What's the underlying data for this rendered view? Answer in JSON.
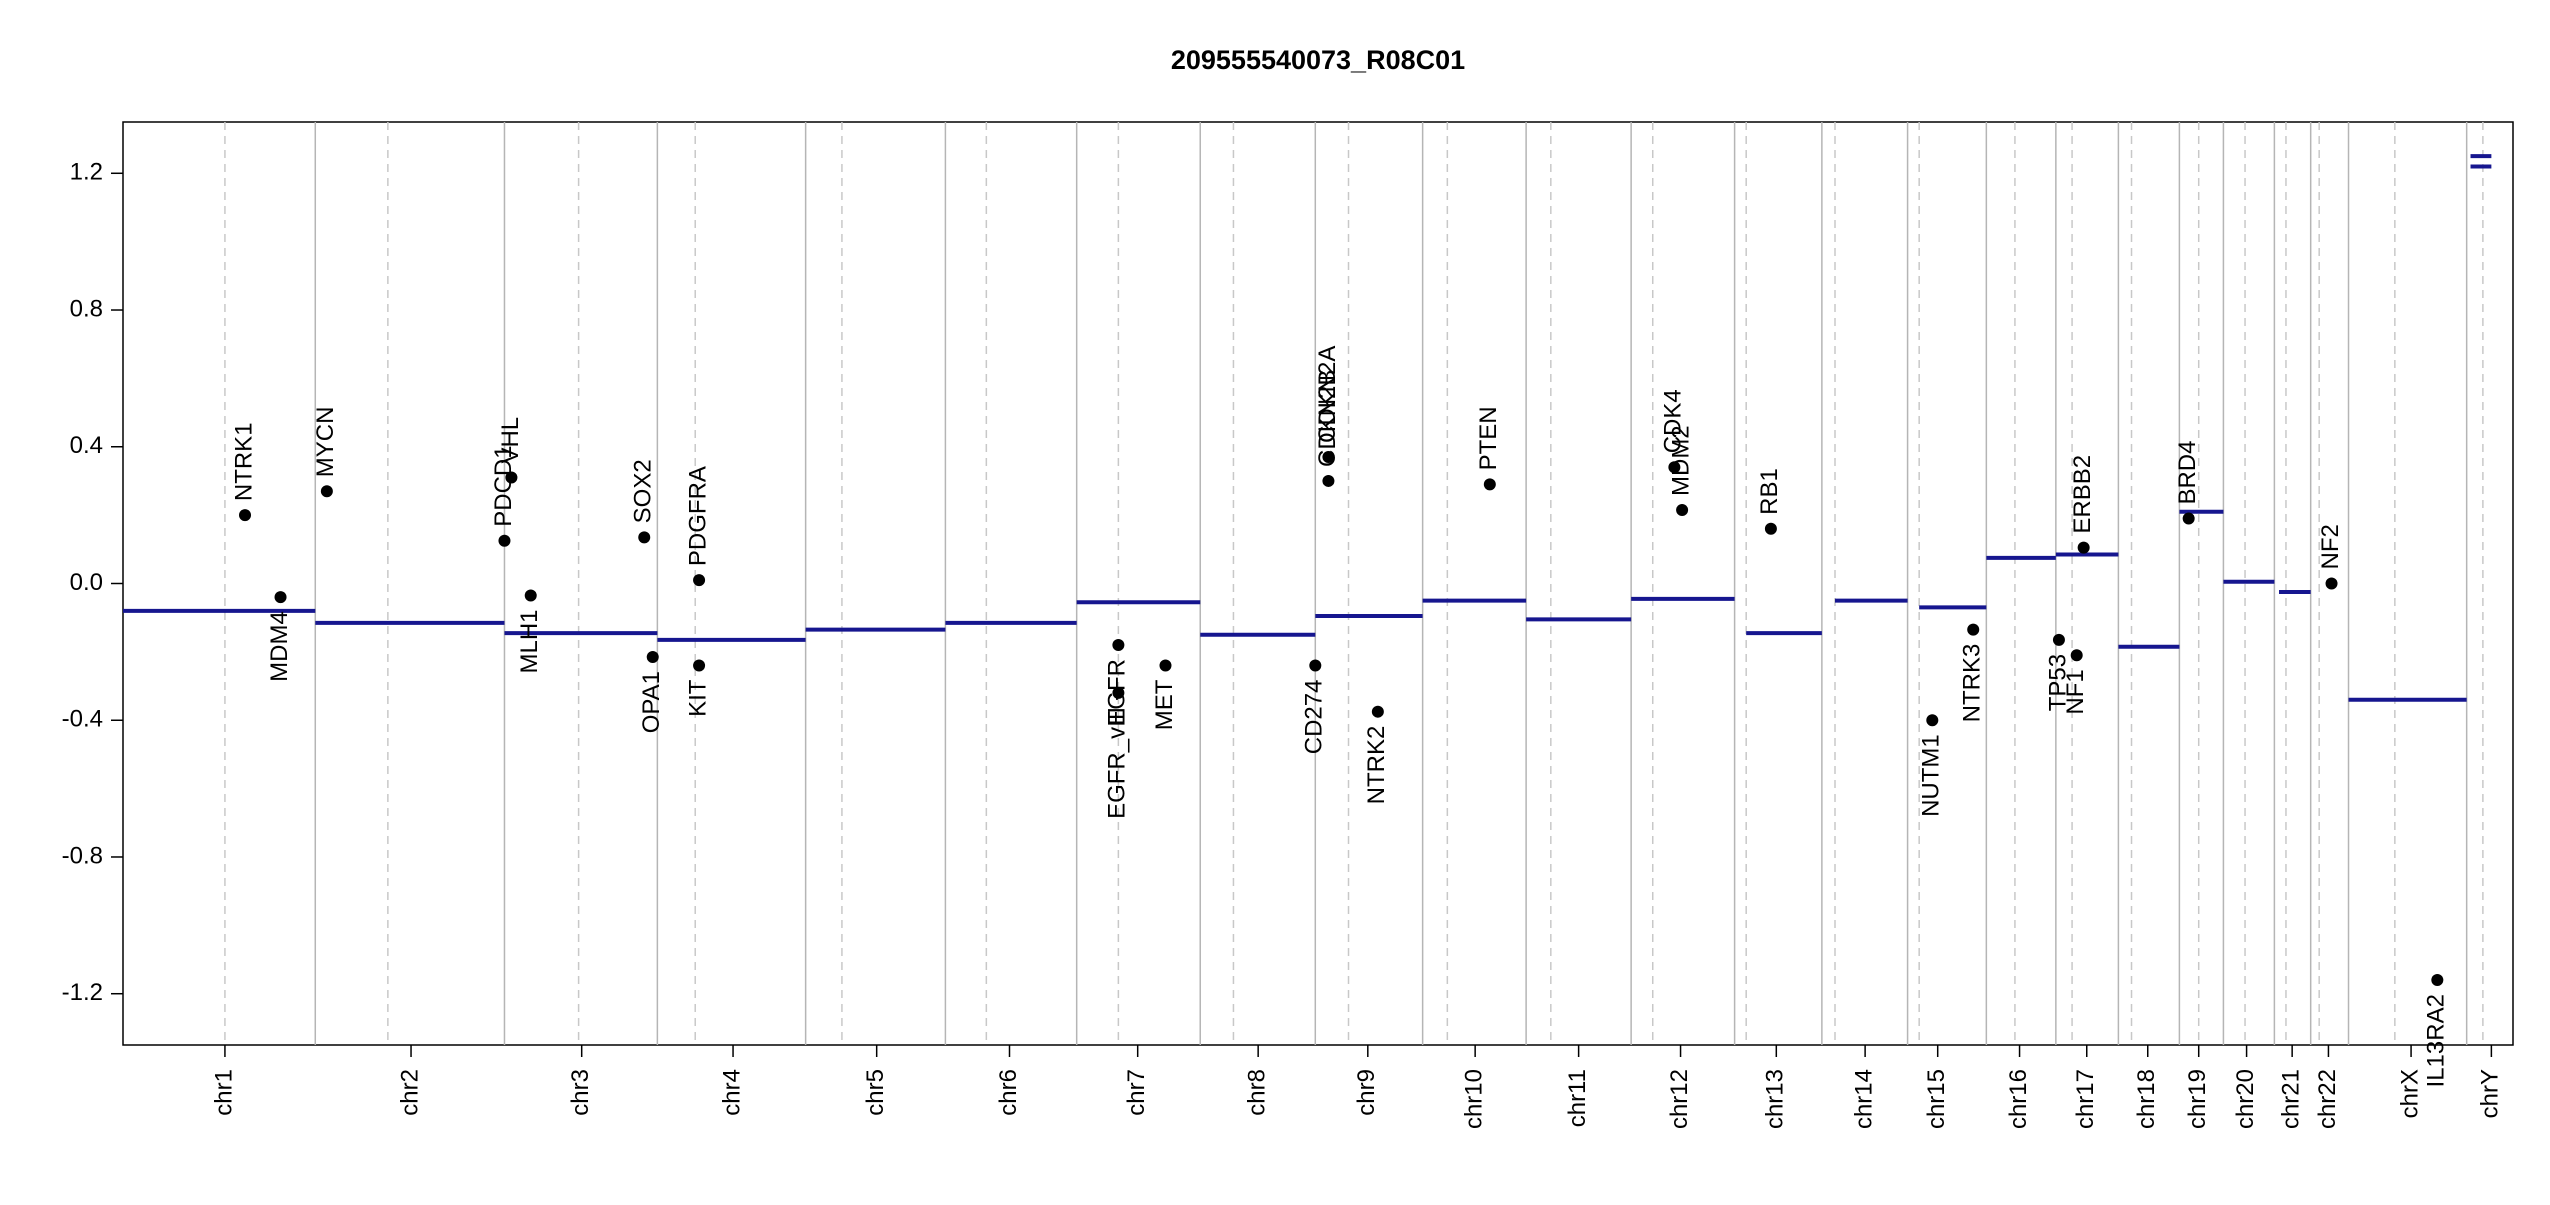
{
  "chart_data": {
    "type": "copy-number",
    "title": "209555540073_R08C01",
    "xlim": [
      0,
      3095
    ],
    "ylim": [
      -1.35,
      1.35
    ],
    "yticks": [
      -1.2,
      -0.8,
      -0.4,
      {
        "value": 0,
        "label": "0.0"
      },
      0.4,
      0.8,
      1.2
    ],
    "xticks": [
      {
        "value": 132,
        "label": "chr1"
      },
      {
        "value": 373,
        "label": "chr2"
      },
      {
        "value": 594,
        "label": "chr3"
      },
      {
        "value": 790,
        "label": "chr4"
      },
      {
        "value": 976,
        "label": "chr5"
      },
      {
        "value": 1148,
        "label": "chr6"
      },
      {
        "value": 1314,
        "label": "chr7"
      },
      {
        "value": 1470,
        "label": "chr8"
      },
      {
        "value": 1612,
        "label": "chr9"
      },
      {
        "value": 1751,
        "label": "chr10"
      },
      {
        "value": 1885,
        "label": "chr11"
      },
      {
        "value": 2017,
        "label": "chr12"
      },
      {
        "value": 2141,
        "label": "chr13"
      },
      {
        "value": 2256,
        "label": "chr14"
      },
      {
        "value": 2350,
        "label": "chr15"
      },
      {
        "value": 2456,
        "label": "chr16"
      },
      {
        "value": 2543,
        "label": "chr17"
      },
      {
        "value": 2622,
        "label": "chr18"
      },
      {
        "value": 2688,
        "label": "chr19"
      },
      {
        "value": 2750,
        "label": "chr20"
      },
      {
        "value": 2809,
        "label": "chr21"
      },
      {
        "value": 2856,
        "label": "chr22"
      },
      {
        "value": 2963,
        "label": "chrX"
      },
      {
        "value": 3067,
        "label": "chrY"
      }
    ],
    "boundaries": [
      249,
      494,
      692,
      884,
      1065,
      1235,
      1395,
      1544,
      1683,
      1817,
      1953,
      2087,
      2200,
      2311,
      2413,
      2503,
      2584,
      2663,
      2720,
      2786,
      2833,
      2882,
      3035
    ],
    "centromeres": [
      132,
      343,
      590,
      741,
      931,
      1118,
      1289,
      1438,
      1587,
      1715,
      1849,
      1981,
      2102,
      2217,
      2326,
      2450,
      2524,
      2601,
      2688,
      2748,
      2801,
      2844,
      2942,
      3056
    ],
    "segment_color": "#16168f",
    "segments": {
      "start": [
        0,
        249,
        494,
        692,
        884,
        1065,
        1235,
        1395,
        1544,
        1683,
        1817,
        1953,
        2102,
        2217,
        2326,
        2413,
        2503,
        2584,
        2663,
        2720,
        2792,
        2882,
        3040,
        3040
      ],
      "end": [
        249,
        494,
        692,
        884,
        1065,
        1235,
        1395,
        1544,
        1683,
        1817,
        1953,
        2087,
        2200,
        2311,
        2413,
        2503,
        2584,
        2663,
        2720,
        2786,
        2833,
        3035,
        3067,
        3067
      ],
      "values": [
        -0.08,
        -0.115,
        -0.145,
        -0.165,
        -0.135,
        -0.115,
        -0.055,
        -0.15,
        -0.095,
        -0.05,
        -0.105,
        -0.045,
        -0.145,
        -0.05,
        -0.07,
        0.075,
        0.085,
        -0.185,
        0.21,
        0.005,
        -0.025,
        -0.34,
        1.25,
        1.22
      ]
    },
    "genes": {
      "names": [
        "NTRK1",
        "MDM4",
        "MYCN",
        "PDCD1",
        "VHL",
        "MLH1",
        "SOX2",
        "OPA1",
        "PDGFRA",
        "KIT",
        "EGFR",
        "EGFR_vIII",
        "MET",
        "CD274",
        "CDKN2A",
        "CDKN2B",
        "NTRK2",
        "PTEN",
        "CDK4",
        "MDM2",
        "RB1",
        "NUTM1",
        "NTRK3",
        "TP53",
        "NF1",
        "ERBB2",
        "BRD4",
        "NF2",
        "IL13RA2"
      ],
      "x": [
        158,
        204,
        264,
        494,
        503,
        528,
        675,
        686,
        746,
        746,
        1289,
        1289,
        1350,
        1544,
        1561,
        1561,
        1625,
        1770,
        2009,
        2019,
        2134,
        2343,
        2396,
        2507,
        2530,
        2539,
        2675,
        2860,
        2997
      ],
      "values": [
        0.2,
        -0.04,
        0.27,
        0.125,
        0.31,
        -0.035,
        0.135,
        -0.215,
        0.01,
        -0.24,
        -0.18,
        -0.32,
        -0.24,
        -0.24,
        0.37,
        0.3,
        -0.375,
        0.29,
        0.34,
        0.215,
        0.16,
        -0.4,
        -0.135,
        -0.165,
        -0.21,
        0.105,
        0.19,
        0.0,
        -1.16
      ]
    }
  }
}
